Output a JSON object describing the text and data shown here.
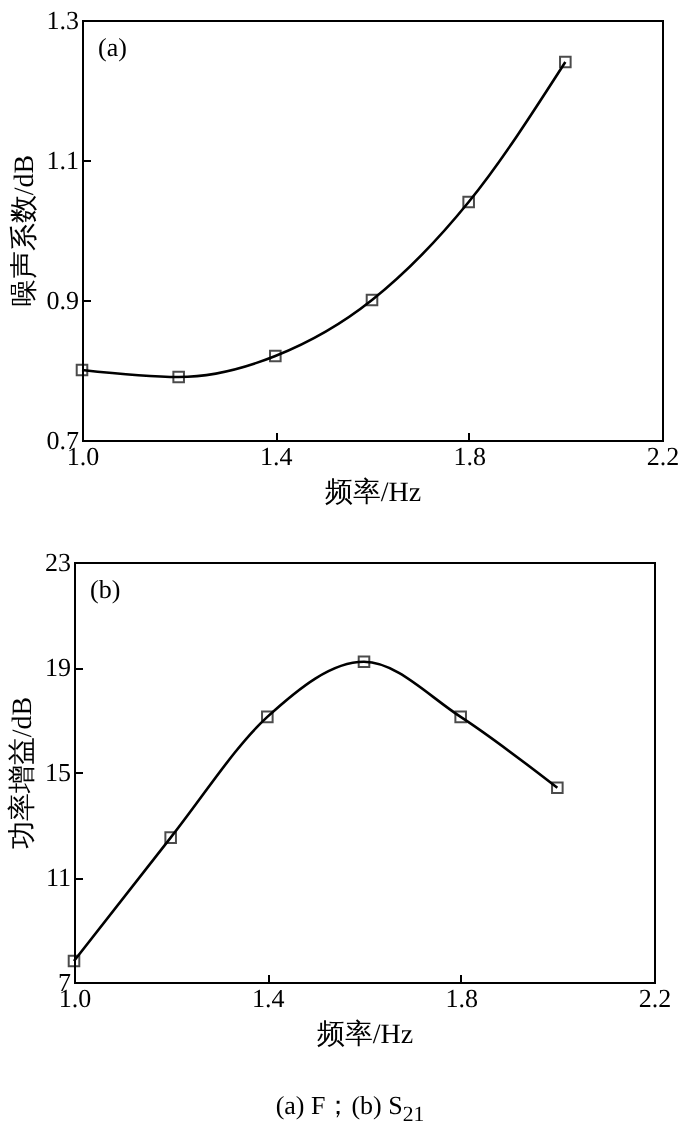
{
  "chart_data": [
    {
      "type": "line",
      "x": [
        1.0,
        1.2,
        1.4,
        1.6,
        1.8,
        2.0
      ],
      "marker": "square",
      "xlabel": "频率/Hz",
      "ylabel": "噪声系数/dB",
      "xlim": [
        1.0,
        2.2
      ],
      "xticks": [
        {
          "value": 1,
          "label": "1.0"
        },
        1.4,
        1.8,
        2.2
      ],
      "ylim": [
        0.7,
        1.3
      ],
      "yticks": [
        0.7,
        0.9,
        1.1,
        1.3
      ],
      "annotations": [
        "(a)"
      ],
      "series": [
        {
          "color": "#000000",
          "values": [
            0.8,
            0.79,
            0.82,
            0.9,
            1.04,
            1.24
          ]
        }
      ]
    },
    {
      "type": "line",
      "x": [
        1.0,
        1.2,
        1.4,
        1.6,
        1.8,
        2.0
      ],
      "marker": "square",
      "xlabel": "频率/Hz",
      "ylabel": "功率增益/dB",
      "xlim": [
        1.0,
        2.2
      ],
      "xticks": [
        {
          "value": 1,
          "label": "1.0"
        },
        1.4,
        1.8,
        2.2
      ],
      "ylim": [
        7,
        23
      ],
      "yticks": [
        7,
        11,
        15,
        19,
        23
      ],
      "annotations": [
        "(b)",
        "(a) F；(b) S$_{21}$"
      ],
      "series": [
        {
          "color": "#000000",
          "values": [
            7.8,
            12.5,
            17.1,
            19.2,
            17.1,
            14.4
          ]
        }
      ]
    }
  ]
}
